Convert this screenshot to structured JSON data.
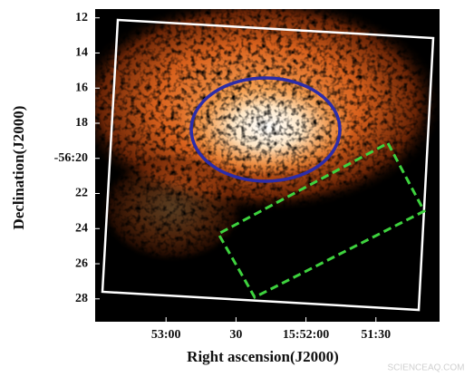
{
  "chart_data": {
    "type": "image",
    "xlabel": "Right ascension(J2000)",
    "ylabel": "Declination(J2000)",
    "xlim": [
      210.4,
      62.7
    ],
    "xticks": [
      {
        "value": 180,
        "label": "53:00"
      },
      {
        "value": 150,
        "label": "30"
      },
      {
        "value": 120,
        "label": "15:52:00"
      },
      {
        "value": 90,
        "label": "51:30"
      }
    ],
    "ylim": [
      11.5,
      29.3
    ],
    "yticks": [
      12,
      14,
      16,
      18,
      {
        "value": 20,
        "label": "-56:20"
      },
      22,
      24,
      26,
      28
    ],
    "watermark": "SCIENCEAQ.COM"
  }
}
